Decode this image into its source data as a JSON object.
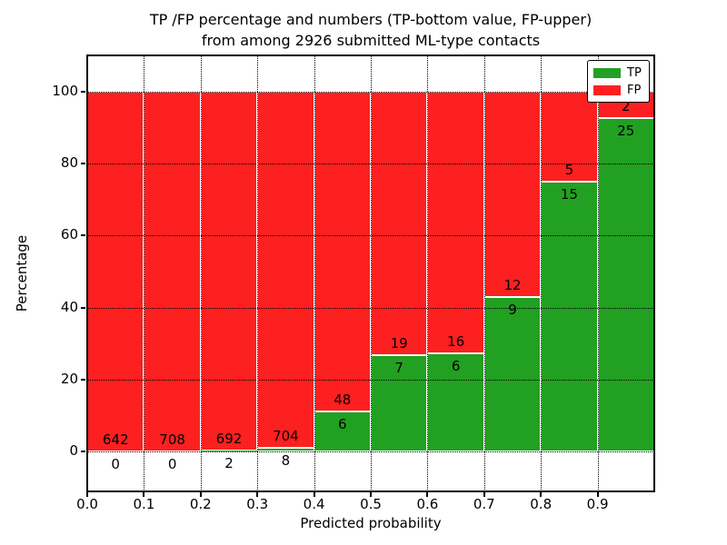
{
  "title": {
    "line1": "TP /FP percentage and numbers (TP-bottom value, FP-upper)",
    "line2": "from among 2926 submitted ML-type contacts"
  },
  "chart_data": {
    "type": "bar",
    "stacked": true,
    "normalized": "each bin scaled to 100 percent",
    "title": "TP /FP percentage and numbers (TP-bottom value, FP-upper)\nfrom among 2926 submitted ML-type contacts",
    "xlabel": "Predicted probability",
    "ylabel": "Percentage",
    "xlim": [
      0.0,
      1.0
    ],
    "ylim": [
      -11,
      110
    ],
    "grid": true,
    "x_ticks": [
      0.0,
      0.1,
      0.2,
      0.3,
      0.4,
      0.5,
      0.6,
      0.7,
      0.8,
      0.9
    ],
    "x_tick_labels": [
      "0.0",
      "0.1",
      "0.2",
      "0.3",
      "0.4",
      "0.5",
      "0.6",
      "0.7",
      "0.8",
      "0.9"
    ],
    "y_ticks": [
      0,
      20,
      40,
      60,
      80,
      100
    ],
    "y_tick_labels": [
      "0",
      "20",
      "40",
      "60",
      "80",
      "100"
    ],
    "total_contacts": 2926,
    "bins": [
      {
        "range": [
          0.0,
          0.1
        ],
        "tp": 0,
        "fp": 642
      },
      {
        "range": [
          0.1,
          0.2
        ],
        "tp": 0,
        "fp": 708
      },
      {
        "range": [
          0.2,
          0.3
        ],
        "tp": 2,
        "fp": 692
      },
      {
        "range": [
          0.3,
          0.4
        ],
        "tp": 8,
        "fp": 704
      },
      {
        "range": [
          0.4,
          0.5
        ],
        "tp": 6,
        "fp": 48
      },
      {
        "range": [
          0.5,
          0.6
        ],
        "tp": 7,
        "fp": 19
      },
      {
        "range": [
          0.6,
          0.7
        ],
        "tp": 6,
        "fp": 16
      },
      {
        "range": [
          0.7,
          0.8
        ],
        "tp": 9,
        "fp": 12
      },
      {
        "range": [
          0.8,
          0.9
        ],
        "tp": 15,
        "fp": 5
      },
      {
        "range": [
          0.9,
          1.0
        ],
        "tp": 25,
        "fp": 2
      }
    ],
    "legend": {
      "position": "upper right",
      "entries": [
        {
          "label": "TP",
          "color": "#22a022"
        },
        {
          "label": "FP",
          "color": "#fd2020"
        }
      ]
    },
    "colors": {
      "tp": "#22a022",
      "fp": "#fd2020",
      "bar_edge": "#ffffff",
      "grid": "#000000",
      "text": "#000000",
      "background": "#ffffff"
    }
  }
}
